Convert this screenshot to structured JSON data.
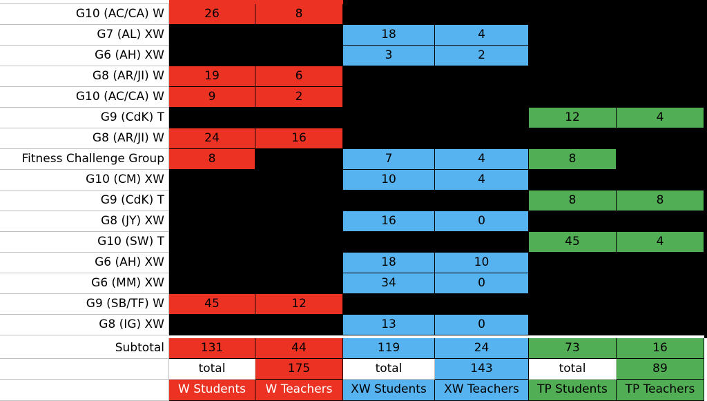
{
  "rows": [
    {
      "label": "G10 (AC/CA) W",
      "w_students": "26",
      "w_teachers": "8",
      "xw_students": "",
      "xw_teachers": "",
      "tp_students": "",
      "tp_teachers": ""
    },
    {
      "label": "G7 (AL) XW",
      "w_students": "",
      "w_teachers": "",
      "xw_students": "18",
      "xw_teachers": "4",
      "tp_students": "",
      "tp_teachers": ""
    },
    {
      "label": "G6 (AH) XW",
      "w_students": "",
      "w_teachers": "",
      "xw_students": "3",
      "xw_teachers": "2",
      "tp_students": "",
      "tp_teachers": ""
    },
    {
      "label": "G8 (AR/JI) W",
      "w_students": "19",
      "w_teachers": "6",
      "xw_students": "",
      "xw_teachers": "",
      "tp_students": "",
      "tp_teachers": ""
    },
    {
      "label": "G10 (AC/CA) W",
      "w_students": "9",
      "w_teachers": "2",
      "xw_students": "",
      "xw_teachers": "",
      "tp_students": "",
      "tp_teachers": ""
    },
    {
      "label": "G9 (CdK) T",
      "w_students": "",
      "w_teachers": "",
      "xw_students": "",
      "xw_teachers": "",
      "tp_students": "12",
      "tp_teachers": "4"
    },
    {
      "label": "G8 (AR/JI) W",
      "w_students": "24",
      "w_teachers": "16",
      "xw_students": "",
      "xw_teachers": "",
      "tp_students": "",
      "tp_teachers": ""
    },
    {
      "label": "Fitness Challenge Group",
      "w_students": "8",
      "w_teachers": "",
      "xw_students": "7",
      "xw_teachers": "4",
      "tp_students": "8",
      "tp_teachers": ""
    },
    {
      "label": "G10 (CM) XW",
      "w_students": "",
      "w_teachers": "",
      "xw_students": "10",
      "xw_teachers": "4",
      "tp_students": "",
      "tp_teachers": ""
    },
    {
      "label": "G9 (CdK) T",
      "w_students": "",
      "w_teachers": "",
      "xw_students": "",
      "xw_teachers": "",
      "tp_students": "8",
      "tp_teachers": "8"
    },
    {
      "label": "G8 (JY) XW",
      "w_students": "",
      "w_teachers": "",
      "xw_students": "16",
      "xw_teachers": "0",
      "tp_students": "",
      "tp_teachers": ""
    },
    {
      "label": "G10 (SW) T",
      "w_students": "",
      "w_teachers": "",
      "xw_students": "",
      "xw_teachers": "",
      "tp_students": "45",
      "tp_teachers": "4"
    },
    {
      "label": "G6 (AH) XW",
      "w_students": "",
      "w_teachers": "",
      "xw_students": "18",
      "xw_teachers": "10",
      "tp_students": "",
      "tp_teachers": ""
    },
    {
      "label": "G6 (MM) XW",
      "w_students": "",
      "w_teachers": "",
      "xw_students": "34",
      "xw_teachers": "0",
      "tp_students": "",
      "tp_teachers": ""
    },
    {
      "label": "G9 (SB/TF) W",
      "w_students": "45",
      "w_teachers": "12",
      "xw_students": "",
      "xw_teachers": "",
      "tp_students": "",
      "tp_teachers": ""
    },
    {
      "label": "G8 (IG) XW",
      "w_students": "",
      "w_teachers": "",
      "xw_students": "13",
      "xw_teachers": "0",
      "tp_students": "",
      "tp_teachers": ""
    }
  ],
  "subtotal": {
    "label": "Subtotal",
    "w_students": "131",
    "w_teachers": "44",
    "xw_students": "119",
    "xw_teachers": "24",
    "tp_students": "73",
    "tp_teachers": "16"
  },
  "totals": {
    "w_label": "total",
    "w_value": "175",
    "xw_label": "total",
    "xw_value": "143",
    "tp_label": "total",
    "tp_value": "89"
  },
  "headers": {
    "w_students": "W Students",
    "w_teachers": "W Teachers",
    "xw_students": "XW Students",
    "xw_teachers": "XW Teachers",
    "tp_students": "TP Students",
    "tp_teachers": "TP Teachers"
  },
  "colors": {
    "w": "#ec3323",
    "xw": "#57b3f0",
    "tp": "#52ae54",
    "empty": "#000000"
  }
}
